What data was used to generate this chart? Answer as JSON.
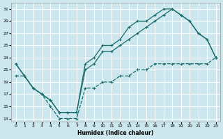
{
  "xlabel": "Humidex (Indice chaleur)",
  "bg_color": "#cce8ee",
  "grid_color": "#ffffff",
  "line_color": "#1a6b6b",
  "xlim": [
    -0.5,
    23.5
  ],
  "ylim": [
    12.5,
    32.0
  ],
  "yticks": [
    13,
    15,
    17,
    19,
    21,
    23,
    25,
    27,
    29,
    31
  ],
  "xticks": [
    0,
    1,
    2,
    3,
    4,
    5,
    6,
    7,
    8,
    9,
    10,
    11,
    12,
    13,
    14,
    15,
    16,
    17,
    18,
    19,
    20,
    21,
    22,
    23
  ],
  "line1_x": [
    0,
    1,
    2,
    3,
    4,
    5,
    6,
    7,
    8,
    9,
    10,
    11,
    12,
    13,
    14,
    15,
    16,
    17,
    18,
    19,
    20,
    21,
    22,
    23
  ],
  "line1_y": [
    22,
    20,
    18,
    17,
    16,
    14,
    14,
    14,
    22,
    23,
    25,
    25,
    26,
    28,
    29,
    29,
    30,
    31,
    31,
    30,
    29,
    27,
    26,
    23
  ],
  "line2_x": [
    0,
    1,
    2,
    3,
    4,
    5,
    6,
    7,
    8,
    9,
    10,
    11,
    12,
    13,
    14,
    15,
    16,
    17,
    18,
    19,
    20,
    21,
    22,
    23
  ],
  "line2_y": [
    22,
    20,
    18,
    17,
    16,
    14,
    14,
    14,
    21,
    22,
    24,
    24,
    25,
    26,
    27,
    28,
    29,
    30,
    31,
    30,
    29,
    27,
    26,
    23
  ],
  "line3_x": [
    0,
    1,
    2,
    3,
    4,
    5,
    6,
    7,
    8,
    9,
    10,
    11,
    12,
    13,
    14,
    15,
    16,
    17,
    18,
    19,
    20,
    21,
    22,
    23
  ],
  "line3_y": [
    20,
    20,
    18,
    17,
    15,
    13,
    13,
    13,
    18,
    18,
    19,
    19,
    20,
    20,
    21,
    21,
    22,
    22,
    22,
    22,
    22,
    22,
    22,
    23
  ]
}
